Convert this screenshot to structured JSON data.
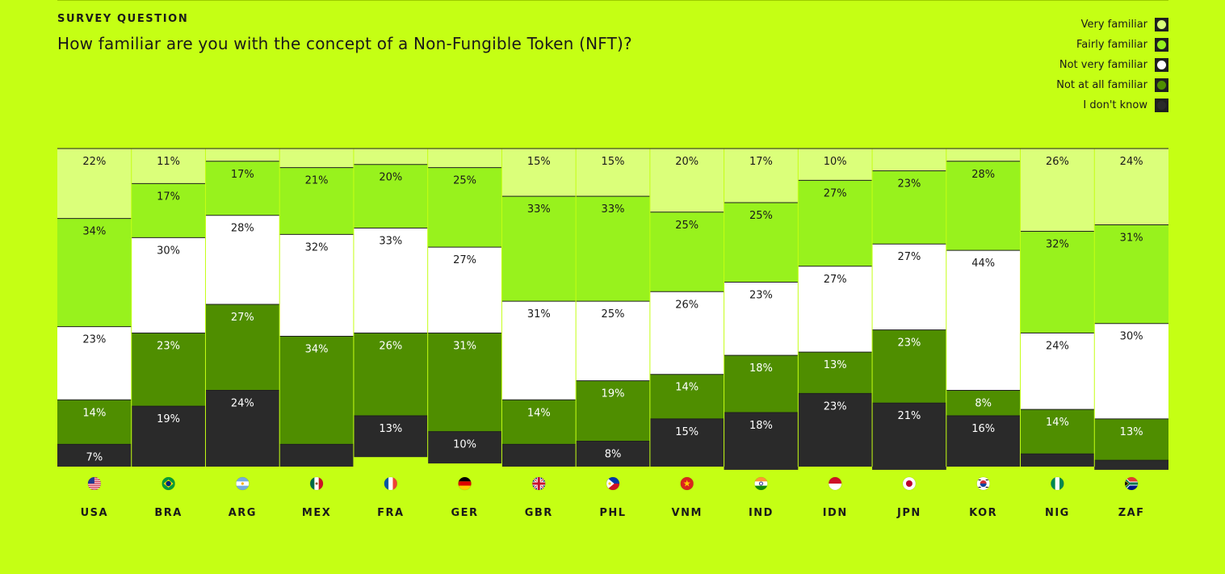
{
  "header": {
    "kicker": "SURVEY QUESTION",
    "question": "How familiar are you with the concept of a Non-Fungible Token (NFT)?"
  },
  "legend": [
    {
      "label": "Very familiar",
      "color": "#dbff7a"
    },
    {
      "label": "Fairly familiar",
      "color": "#98f21d"
    },
    {
      "label": "Not very familiar",
      "color": "#ffffff"
    },
    {
      "label": "Not at all familiar",
      "color": "#4f8e00"
    },
    {
      "label": "I don't know",
      "color": "#2a2a2a"
    }
  ],
  "chart_data": {
    "type": "bar",
    "stacked": true,
    "ylim": [
      0,
      100
    ],
    "categories": [
      "USA",
      "BRA",
      "ARG",
      "MEX",
      "FRA",
      "GER",
      "GBR",
      "PHL",
      "VNM",
      "IND",
      "IDN",
      "JPN",
      "KOR",
      "NIG",
      "ZAF"
    ],
    "flags": [
      "us-flag-icon",
      "br-flag-icon",
      "ar-flag-icon",
      "mx-flag-icon",
      "fr-flag-icon",
      "de-flag-icon",
      "gb-flag-icon",
      "ph-flag-icon",
      "vn-flag-icon",
      "in-flag-icon",
      "id-flag-icon",
      "jp-flag-icon",
      "kr-flag-icon",
      "ng-flag-icon",
      "za-flag-icon"
    ],
    "series": [
      {
        "name": "Very familiar",
        "color": "#dbff7a",
        "text_color": "#1a1a1a",
        "values": [
          22,
          11,
          4,
          6,
          5,
          6,
          15,
          15,
          20,
          17,
          10,
          7,
          4,
          26,
          24
        ],
        "labels": [
          "22%",
          "11%",
          "",
          "",
          "",
          "",
          "15%",
          "15%",
          "20%",
          "17%",
          "10%",
          "",
          "",
          "26%",
          "24%"
        ]
      },
      {
        "name": "Fairly familiar",
        "color": "#98f21d",
        "text_color": "#1a1a1a",
        "values": [
          34,
          17,
          17,
          21,
          20,
          25,
          33,
          33,
          25,
          25,
          27,
          23,
          28,
          32,
          31
        ],
        "labels": [
          "34%",
          "17%",
          "17%",
          "21%",
          "20%",
          "25%",
          "33%",
          "33%",
          "25%",
          "25%",
          "27%",
          "23%",
          "28%",
          "32%",
          "31%"
        ]
      },
      {
        "name": "Not very familiar",
        "color": "#ffffff",
        "text_color": "#1a1a1a",
        "values": [
          23,
          30,
          28,
          32,
          33,
          27,
          31,
          25,
          26,
          23,
          27,
          27,
          44,
          24,
          30
        ],
        "labels": [
          "23%",
          "30%",
          "28%",
          "32%",
          "33%",
          "27%",
          "31%",
          "25%",
          "26%",
          "23%",
          "27%",
          "27%",
          "44%",
          "24%",
          "30%"
        ]
      },
      {
        "name": "Not at all familiar",
        "color": "#4f8e00",
        "text_color": "#ffffff",
        "values": [
          14,
          23,
          27,
          34,
          26,
          31,
          14,
          19,
          14,
          18,
          13,
          23,
          8,
          14,
          13
        ],
        "labels": [
          "14%",
          "23%",
          "27%",
          "34%",
          "26%",
          "31%",
          "14%",
          "19%",
          "14%",
          "18%",
          "13%",
          "23%",
          "8%",
          "14%",
          "13%"
        ]
      },
      {
        "name": "I don't know",
        "color": "#2a2a2a",
        "text_color": "#ffffff",
        "values": [
          7,
          19,
          24,
          7,
          13,
          10,
          7,
          8,
          15,
          18,
          23,
          21,
          16,
          4,
          3
        ],
        "labels": [
          "7%",
          "19%",
          "24%",
          "",
          "13%",
          "10%",
          "",
          "8%",
          "15%",
          "18%",
          "23%",
          "21%",
          "16%",
          "",
          ""
        ]
      }
    ]
  }
}
